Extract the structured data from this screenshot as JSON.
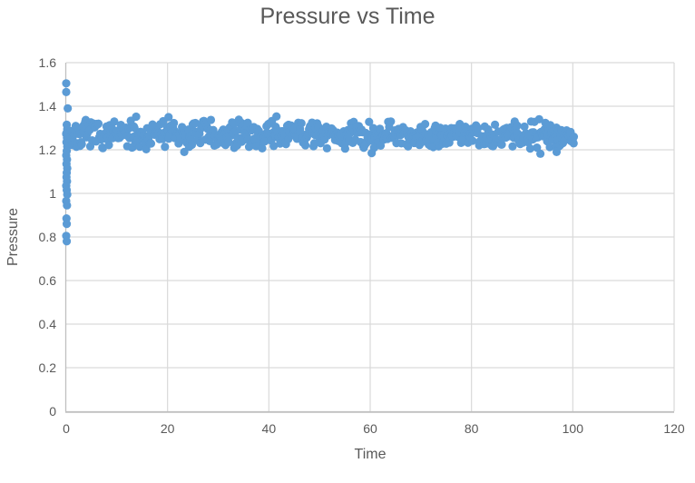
{
  "window": {
    "background": "#ffffff"
  },
  "chart_data": {
    "type": "scatter",
    "title": "Pressure vs Time",
    "xlabel": "Time",
    "ylabel": "Pressure",
    "xlim": [
      0,
      120
    ],
    "ylim": [
      0,
      1.6
    ],
    "x_tick_values": [
      0,
      20,
      40,
      60,
      80,
      100,
      120
    ],
    "x_tick_labels": [
      "0",
      "20",
      "40",
      "60",
      "80",
      "100",
      "120"
    ],
    "y_tick_values": [
      0,
      0.2,
      0.4,
      0.6,
      0.8,
      1,
      1.2,
      1.4,
      1.6
    ],
    "y_tick_labels": [
      "0",
      "0.2",
      "0.4",
      "0.6",
      "0.8",
      "1",
      "1.2",
      "1.4",
      "1.6"
    ],
    "grid": true,
    "legend": "none",
    "marker": {
      "shape": "circle",
      "color": "#5B9BD5",
      "radius_px": 4.6
    },
    "colors": {
      "gridline": "#D9D9D9",
      "axis_line": "#BFBFBF",
      "text": "#595959",
      "background": "#ffffff"
    },
    "series": [
      {
        "name": "Pressure",
        "startup_transient_points": [
          [
            0,
            1.505
          ],
          [
            0,
            1.465
          ],
          [
            0.3,
            1.39
          ],
          [
            0.1,
            1.315
          ],
          [
            0.2,
            1.295
          ],
          [
            0,
            1.275
          ],
          [
            0.15,
            1.255
          ],
          [
            0.05,
            1.235
          ],
          [
            0.2,
            1.215
          ],
          [
            0.1,
            1.195
          ],
          [
            0,
            1.175
          ],
          [
            0.15,
            1.155
          ],
          [
            0.05,
            1.135
          ],
          [
            0.2,
            1.115
          ],
          [
            0.1,
            1.095
          ],
          [
            0.05,
            1.075
          ],
          [
            0.15,
            1.055
          ],
          [
            0,
            1.035
          ],
          [
            0.1,
            1.015
          ],
          [
            0.2,
            0.995
          ],
          [
            0,
            0.965
          ],
          [
            0.15,
            0.945
          ],
          [
            0.05,
            0.885
          ],
          [
            0.1,
            0.86
          ],
          [
            0,
            0.805
          ],
          [
            0.1,
            0.78
          ]
        ],
        "steady_state_band": {
          "x_range": [
            0,
            100.2
          ],
          "mean": 1.27,
          "half_width": 0.072,
          "distribution": "triangular",
          "n_points": 640,
          "seed": 7
        },
        "outlier_points": [
          [
            13.8,
            1.352
          ],
          [
            20.2,
            1.35
          ],
          [
            41.5,
            1.353
          ],
          [
            23.3,
            1.19
          ],
          [
            60.3,
            1.185
          ],
          [
            93.6,
            1.182
          ],
          [
            96.8,
            1.19
          ],
          [
            99.5,
            1.27
          ],
          [
            100.2,
            1.26
          ]
        ]
      }
    ]
  }
}
